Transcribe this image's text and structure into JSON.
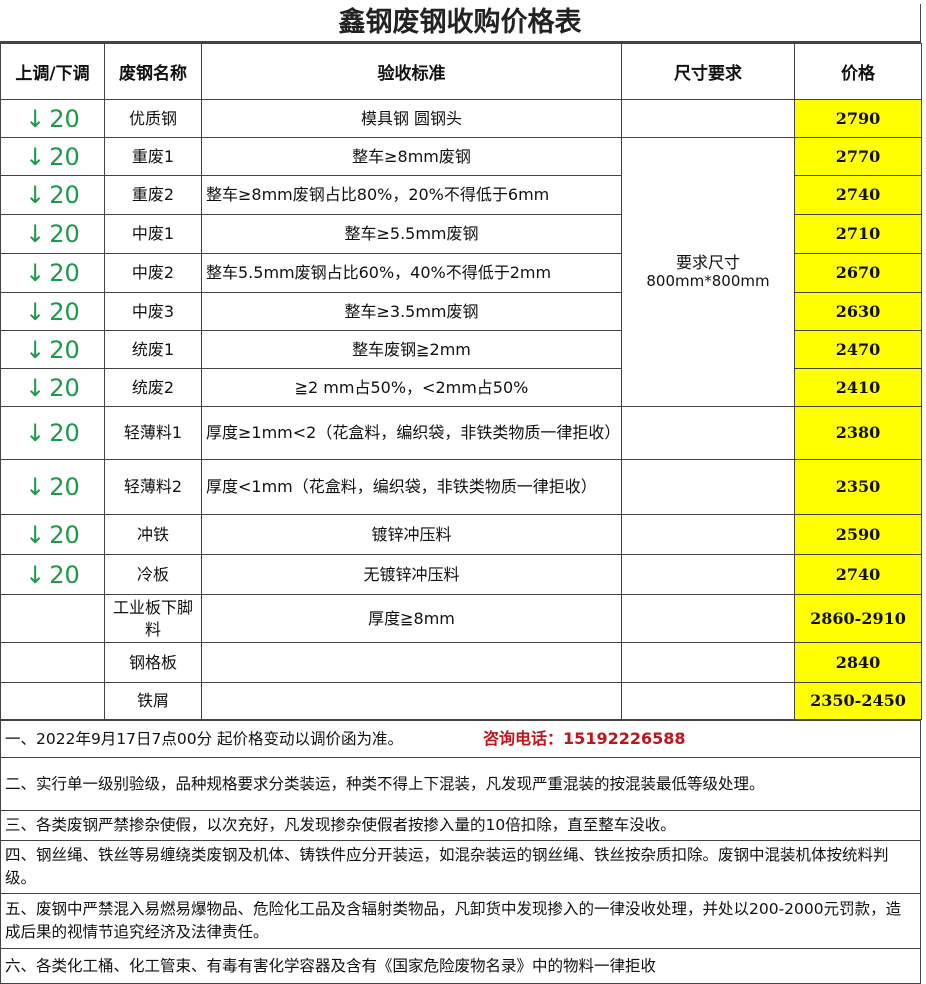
{
  "title": "鑫钢废钢收购价格表",
  "headers": [
    "上调/下调",
    "废钢名称",
    "验收标准",
    "尺寸要求",
    "价格"
  ],
  "arrow_color": "#1a9a4a",
  "price_bg": "#ffff00",
  "size_merged": "要求尺寸\n800mm*800mm",
  "size_line1": "要求尺寸",
  "size_line2": "800mm*800mm",
  "rows": [
    {
      "arrow": "↓",
      "adj": "20",
      "name": "优质钢",
      "std": "模具钢  圆钢头",
      "price": "2790"
    },
    {
      "arrow": "↓",
      "adj": "20",
      "name": "重废1",
      "std": "整车≥8mm废钢",
      "price": "2770"
    },
    {
      "arrow": "↓",
      "adj": "20",
      "name": "重废2",
      "std": "整车≥8mm废钢占比80%，20%不得低于6mm",
      "price": "2740"
    },
    {
      "arrow": "↓",
      "adj": "20",
      "name": "中废1",
      "std": "整车≥5.5mm废钢",
      "price": "2710"
    },
    {
      "arrow": "↓",
      "adj": "20",
      "name": "中废2",
      "std": "整车5.5mm废钢占比60%，40%不得低于2mm",
      "price": "2670"
    },
    {
      "arrow": "↓",
      "adj": "20",
      "name": "中废3",
      "std": "整车≥3.5mm废钢",
      "price": "2630"
    },
    {
      "arrow": "↓",
      "adj": "20",
      "name": "统废1",
      "std": "整车废钢≧2mm",
      "price": "2470"
    },
    {
      "arrow": "↓",
      "adj": "20",
      "name": "统废2",
      "std": "≧2 mm占50%，<2mm占50%",
      "price": "2410"
    },
    {
      "arrow": "↓",
      "adj": "20",
      "name": "轻薄料1",
      "std": "厚度≥1mm<2（花盒料，编织袋，非铁类物质一律拒收）",
      "price": "2380"
    },
    {
      "arrow": "↓",
      "adj": "20",
      "name": "轻薄料2",
      "std": "厚度<1mm（花盒料，编织袋，非铁类物质一律拒收）",
      "price": "2350"
    },
    {
      "arrow": "↓",
      "adj": "20",
      "name": "冲铁",
      "std": "镀锌冲压料",
      "price": "2590"
    },
    {
      "arrow": "↓",
      "adj": "20",
      "name": "冷板",
      "std": "无镀锌冲压料",
      "price": "2740"
    },
    {
      "arrow": "",
      "adj": "",
      "name": "工业板下脚料",
      "std": "厚度≧8mm",
      "price": "2860-2910"
    },
    {
      "arrow": "",
      "adj": "",
      "name": "钢格板",
      "std": "",
      "price": "2840"
    },
    {
      "arrow": "",
      "adj": "",
      "name": "铁屑",
      "std": "",
      "price": "2350-2450"
    }
  ],
  "notes": [
    "一、2022年9月17日7点00分 起价格变动以调价函为准。",
    "二、实行单一级别验级，品种规格要求分类装运，种类不得上下混装，凡发现严重混装的按混装最低等级处理。",
    "三、各类废钢严禁掺杂使假，以次充好，凡发现掺杂使假者按掺入量的10倍扣除，直至整车没收。",
    "四、钢丝绳、铁丝等易缠绕类废钢及机体、铸铁件应分开装运，如混杂装运的钢丝绳、铁丝按杂质扣除。废钢中混装机体按统料判级。",
    "五、废钢中严禁混入易燃易爆物品、危险化工品及含辐射类物品，凡卸货中发现掺入的一律没收处理，并处以200-2000元罚款，造成后果的视情节追究经济及法律责任。",
    "六、各类化工桶、化工管束、有毒有害化学容器及含有《国家危险废物名录》中的物料一律拒收"
  ],
  "phone": "咨询电话：15192226588"
}
